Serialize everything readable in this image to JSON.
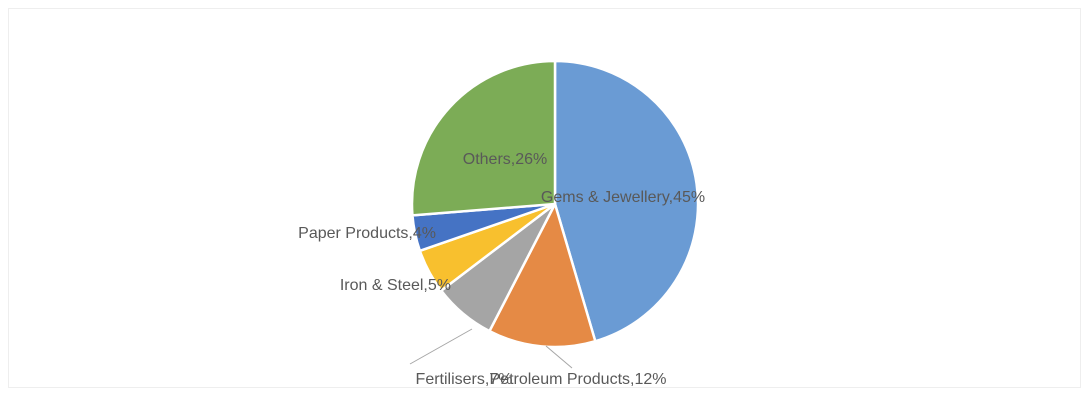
{
  "chart_data": {
    "type": "pie",
    "title": "",
    "start_angle_deg": 0,
    "direction": "clockwise",
    "slices": [
      {
        "label": "Gems & Jewellery,45%",
        "name": "Gems & Jewellery",
        "value": 45,
        "color": "#6a9bd4"
      },
      {
        "label": "Petroleum Products,12%",
        "name": "Petroleum Products",
        "value": 12,
        "color": "#e58a45"
      },
      {
        "label": "Fertilisers,7%",
        "name": "Fertilisers",
        "value": 7,
        "color": "#a5a5a5"
      },
      {
        "label": "Iron & Steel,5%",
        "name": "Iron & Steel",
        "value": 5,
        "color": "#f8c02e"
      },
      {
        "label": "Paper Products,4%",
        "name": "Paper Products",
        "value": 4,
        "color": "#4573c4"
      },
      {
        "label": "Others,26%",
        "name": "Others",
        "value": 26,
        "color": "#7cac56"
      }
    ]
  }
}
